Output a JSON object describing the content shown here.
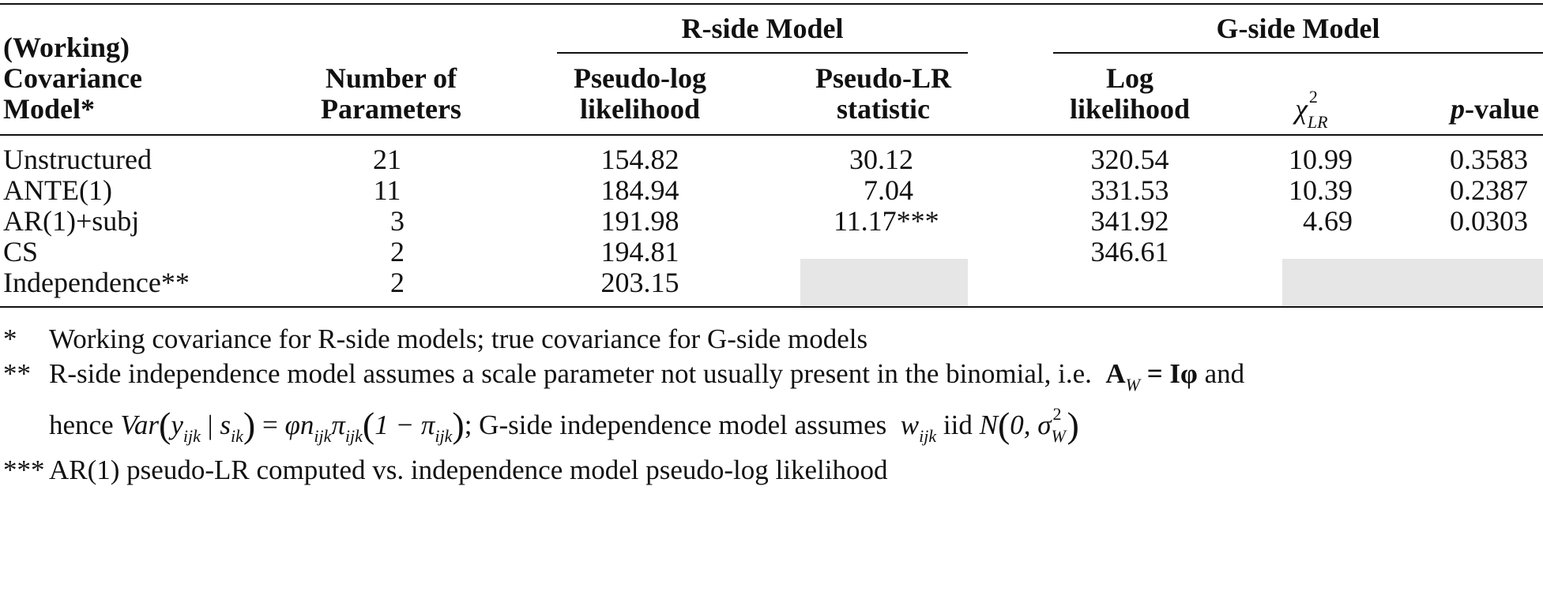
{
  "header": {
    "rside_group": "R-side Model",
    "gside_group": "G-side Model",
    "col_model": [
      "(Working)",
      "Covariance",
      "Model*"
    ],
    "col_params": [
      "Number of",
      "Parameters"
    ],
    "col_pll": [
      "Pseudo-log",
      "likelihood"
    ],
    "col_plr": [
      "Pseudo-LR",
      "statistic"
    ],
    "col_ll": [
      "Log",
      "likelihood"
    ],
    "col_chi_symbol": "χ",
    "col_chi_sup": "2",
    "col_chi_sub": "LR",
    "col_p_italic": "p",
    "col_p_rest": "-value"
  },
  "rows": [
    {
      "model": "Unstructured",
      "params": "21",
      "pll": "154.82",
      "plr": "30.12",
      "ll": "320.54",
      "chi": "10.99",
      "p": "0.3583"
    },
    {
      "model": "ANTE(1)",
      "params": "11",
      "pll": "184.94",
      "plr": "7.04",
      "ll": "331.53",
      "chi": "10.39",
      "p": "0.2387"
    },
    {
      "model": "AR(1)+subj",
      "params": "3",
      "pll": "191.98",
      "plr": "11.17***",
      "ll": "341.92",
      "chi": "4.69",
      "p": "0.0303"
    },
    {
      "model": "CS",
      "params": "2",
      "pll": "194.81",
      "plr": "",
      "ll": "346.61",
      "chi": "",
      "p": ""
    },
    {
      "model": "Independence**",
      "params": "2",
      "pll": "203.15",
      "plr": "",
      "ll": "",
      "chi": "",
      "p": ""
    }
  ],
  "notes": {
    "n1_mark": "*",
    "n1_text": "Working covariance for R-side models; true covariance for G-side models",
    "n2_mark": "**",
    "n2_text_a": "R-side independence model assumes a scale parameter not usually present in the binomial, i.e.",
    "n2_AW": "A",
    "n2_W": "W",
    "n2_eq": "= Iφ",
    "n2_and": "and",
    "n2_hence": "hence",
    "n2_var": "Var",
    "n2_y": "y",
    "n2_ijk": "ijk",
    "n2_s": "s",
    "n2_ik": "ik",
    "n2_phi_n": "φn",
    "n2_pi": "π",
    "n2_one_minus": "1 − π",
    "n2_mid": "; G-side independence model assumes",
    "n2_w": "w",
    "n2_iid": "iid",
    "n2_N": "N",
    "n2_zero": "0, σ",
    "n2_sigma_sup": "2",
    "n2_sigma_sub": "W",
    "n3_mark": "***",
    "n3_text": "AR(1) pseudo-LR computed vs. independence model pseudo-log likelihood"
  }
}
